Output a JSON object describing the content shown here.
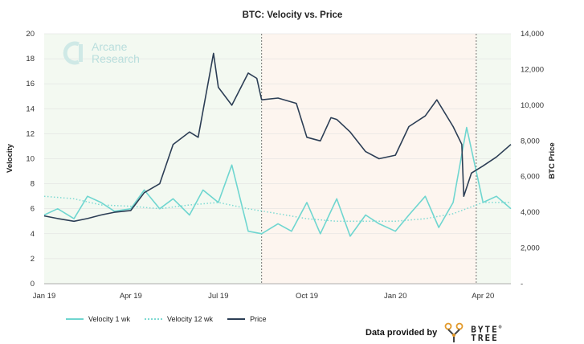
{
  "colors": {
    "velocity_1wk": "#6fd6d0",
    "velocity_12wk": "#7fdad3",
    "price": "#2c3e55",
    "shade_left": "#f3f9f1",
    "shade_middle": "#fdf5ef",
    "shade_right": "#f3f9f1",
    "grid": "#dddddd"
  },
  "watermark": {
    "line1": "Arcane",
    "line2": "Research"
  },
  "credit": {
    "label": "Data provided by",
    "brand_line1": "BYTE",
    "brand_line2": "TREE",
    "mark": "®"
  },
  "chart_data": {
    "type": "line",
    "title": "BTC: Velocity vs. Price",
    "ylabel": "Velocity",
    "y2label": "BTC Price",
    "xlim": [
      "2019-01-01",
      "2020-04-30"
    ],
    "ylim": [
      0,
      20
    ],
    "y2lim": [
      0,
      14000
    ],
    "yticks": [
      0,
      2,
      4,
      6,
      8,
      10,
      12,
      14,
      16,
      18,
      20
    ],
    "y2ticks": [
      "-",
      "2,000",
      "4,000",
      "6,000",
      "8,000",
      "10,000",
      "12,000",
      "14,000"
    ],
    "xticks": [
      {
        "date": "2019-01-01",
        "label": "Jan 19"
      },
      {
        "date": "2019-04-01",
        "label": "Apr 19"
      },
      {
        "date": "2019-07-01",
        "label": "Jul 19"
      },
      {
        "date": "2019-10-01",
        "label": "Oct 19"
      },
      {
        "date": "2020-01-01",
        "label": "Jan 20"
      },
      {
        "date": "2020-04-01",
        "label": "Apr 20"
      }
    ],
    "vlines": [
      "2019-08-15",
      "2020-03-25"
    ],
    "grid": true,
    "legend_position": "bottom-left",
    "series": [
      {
        "name": "Velocity 1 wk",
        "axis": "left",
        "style": "solid",
        "x": [
          "2019-01-01",
          "2019-01-15",
          "2019-02-01",
          "2019-02-15",
          "2019-03-01",
          "2019-03-15",
          "2019-04-01",
          "2019-04-15",
          "2019-05-01",
          "2019-05-15",
          "2019-06-01",
          "2019-06-15",
          "2019-07-01",
          "2019-07-15",
          "2019-08-01",
          "2019-08-15",
          "2019-09-01",
          "2019-09-15",
          "2019-10-01",
          "2019-10-15",
          "2019-11-01",
          "2019-11-15",
          "2019-12-01",
          "2019-12-15",
          "2020-01-01",
          "2020-01-15",
          "2020-02-01",
          "2020-02-15",
          "2020-03-01",
          "2020-03-15",
          "2020-04-01",
          "2020-04-15",
          "2020-04-30"
        ],
        "values": [
          5.5,
          6.0,
          5.2,
          7.0,
          6.5,
          5.8,
          6.0,
          7.5,
          6.0,
          6.8,
          5.5,
          7.5,
          6.5,
          9.5,
          4.2,
          4.0,
          4.8,
          4.2,
          6.5,
          4.0,
          6.8,
          3.8,
          5.5,
          4.8,
          4.2,
          5.5,
          7.0,
          4.5,
          6.5,
          12.5,
          6.5,
          7.0,
          6.0
        ]
      },
      {
        "name": "Velocity 12 wk",
        "axis": "left",
        "style": "dotted",
        "x": [
          "2019-01-01",
          "2019-02-01",
          "2019-03-01",
          "2019-04-01",
          "2019-05-01",
          "2019-06-01",
          "2019-07-01",
          "2019-08-01",
          "2019-09-01",
          "2019-10-01",
          "2019-11-01",
          "2019-12-01",
          "2020-01-01",
          "2020-02-01",
          "2020-03-01",
          "2020-04-01",
          "2020-04-30"
        ],
        "values": [
          7.0,
          6.8,
          6.3,
          6.2,
          6.0,
          6.3,
          6.5,
          6.0,
          5.6,
          5.2,
          5.0,
          5.0,
          5.0,
          5.2,
          5.6,
          6.5,
          6.5
        ]
      },
      {
        "name": "Price",
        "axis": "right",
        "style": "solid",
        "x": [
          "2019-01-01",
          "2019-01-15",
          "2019-02-01",
          "2019-02-15",
          "2019-03-01",
          "2019-03-15",
          "2019-04-01",
          "2019-04-15",
          "2019-05-01",
          "2019-05-15",
          "2019-06-01",
          "2019-06-10",
          "2019-06-26",
          "2019-07-01",
          "2019-07-15",
          "2019-08-01",
          "2019-08-10",
          "2019-08-15",
          "2019-09-01",
          "2019-09-20",
          "2019-10-01",
          "2019-10-15",
          "2019-10-26",
          "2019-11-01",
          "2019-11-15",
          "2019-12-01",
          "2019-12-15",
          "2020-01-01",
          "2020-01-15",
          "2020-02-01",
          "2020-02-13",
          "2020-03-01",
          "2020-03-10",
          "2020-03-12",
          "2020-03-20",
          "2020-04-01",
          "2020-04-15",
          "2020-04-30"
        ],
        "values": [
          3800,
          3650,
          3500,
          3650,
          3850,
          4000,
          4100,
          5100,
          5600,
          7800,
          8500,
          8200,
          12900,
          11000,
          10000,
          11800,
          11500,
          10300,
          10400,
          10100,
          8200,
          8000,
          9300,
          9200,
          8500,
          7400,
          7000,
          7200,
          8800,
          9400,
          10300,
          8800,
          7800,
          4900,
          6200,
          6600,
          7100,
          7800
        ]
      }
    ]
  }
}
